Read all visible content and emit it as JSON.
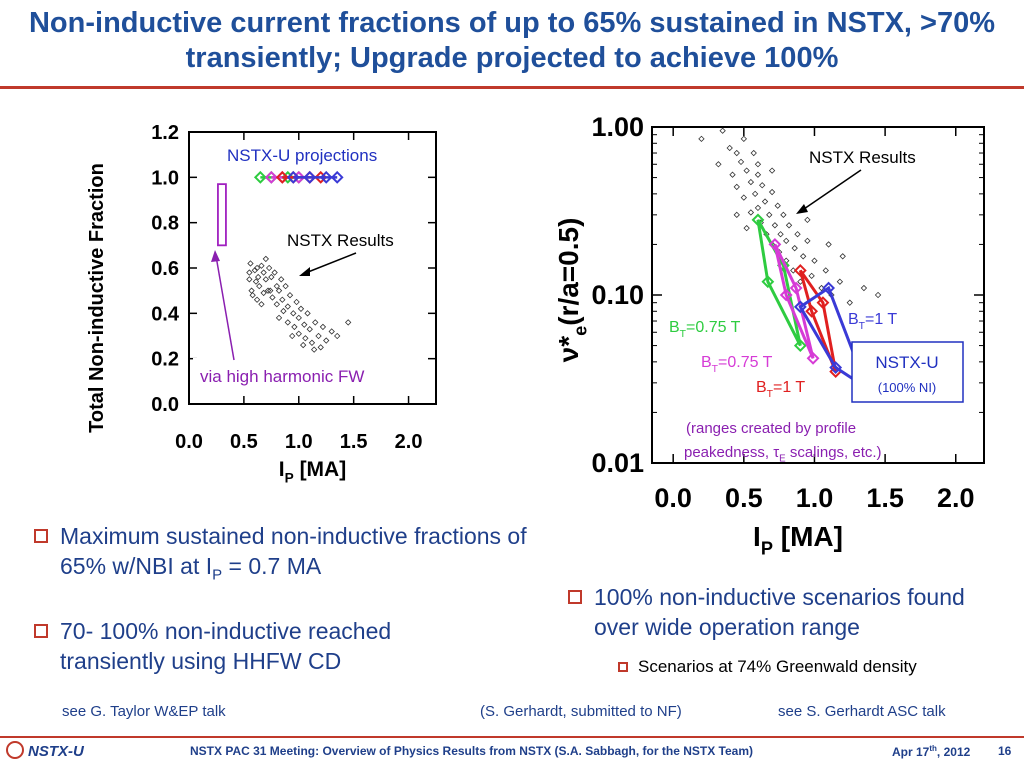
{
  "slide": {
    "title": "Non-inductive current fractions of up to 65% sustained in NSTX, >70% transiently; Upgrade projected to achieve 100%",
    "bullets_left": [
      {
        "text": "Maximum sustained non-inductive fractions of 65% w/NBI at I",
        "sub": "P",
        "tail": " = 0.7 MA"
      },
      {
        "text": "70- 100% non-inductive reached transiently using HHFW CD"
      }
    ],
    "bullets_right": [
      {
        "text": "100% non-inductive scenarios found over wide operation range"
      },
      {
        "text": "Scenarios at 74% Greenwald density"
      }
    ],
    "refs": [
      "see G. Taylor W&EP talk",
      "(S. Gerhardt, submitted to NF)",
      "see S. Gerhardt ASC talk"
    ],
    "footer": {
      "logo": "NSTX-U",
      "meeting": "NSTX PAC 31 Meeting: Overview of Physics Results from NSTX (S.A. Sabbagh, for the NSTX Team)",
      "date_prefix": "Apr 17",
      "date_sup": "th",
      "date_suffix": ", 2012",
      "page": "16"
    },
    "colors": {
      "title": "#1f4f9a",
      "accent": "#c0392b"
    }
  },
  "chart_data": [
    {
      "type": "scatter",
      "title": "",
      "xlabel_main": "I",
      "xlabel_sub": "P",
      "xlabel_tail": " [MA]",
      "ylabel": "Total Non-inductive Fraction",
      "xlim": [
        0,
        2.25
      ],
      "ylim": [
        0,
        1.2
      ],
      "xticks": [
        "0.0",
        "0.5",
        "1.0",
        "1.5",
        "2.0"
      ],
      "yticks": [
        "0.0",
        "0.2",
        "0.4",
        "0.6",
        "0.8",
        "1.0",
        "1.2"
      ],
      "annotations": [
        "NSTX-U projections",
        "NSTX Results",
        "via high harmonic FW"
      ],
      "hhfw_range": {
        "x": 0.3,
        "y": [
          0.7,
          0.97
        ]
      },
      "nstx_results": [
        [
          0.55,
          0.58
        ],
        [
          0.55,
          0.55
        ],
        [
          0.56,
          0.62
        ],
        [
          0.57,
          0.5
        ],
        [
          0.6,
          0.59
        ],
        [
          0.61,
          0.54
        ],
        [
          0.62,
          0.6
        ],
        [
          0.63,
          0.56
        ],
        [
          0.64,
          0.52
        ],
        [
          0.66,
          0.61
        ],
        [
          0.68,
          0.58
        ],
        [
          0.7,
          0.64
        ],
        [
          0.7,
          0.55
        ],
        [
          0.72,
          0.5
        ],
        [
          0.73,
          0.6
        ],
        [
          0.75,
          0.56
        ],
        [
          0.76,
          0.47
        ],
        [
          0.78,
          0.58
        ],
        [
          0.8,
          0.52
        ],
        [
          0.8,
          0.44
        ],
        [
          0.82,
          0.5
        ],
        [
          0.84,
          0.55
        ],
        [
          0.85,
          0.46
        ],
        [
          0.86,
          0.41
        ],
        [
          0.88,
          0.52
        ],
        [
          0.9,
          0.43
        ],
        [
          0.9,
          0.36
        ],
        [
          0.92,
          0.48
        ],
        [
          0.95,
          0.4
        ],
        [
          0.96,
          0.34
        ],
        [
          0.98,
          0.45
        ],
        [
          1.0,
          0.38
        ],
        [
          1.0,
          0.31
        ],
        [
          1.02,
          0.42
        ],
        [
          1.05,
          0.35
        ],
        [
          1.06,
          0.29
        ],
        [
          1.08,
          0.4
        ],
        [
          1.1,
          0.33
        ],
        [
          1.12,
          0.27
        ],
        [
          1.15,
          0.36
        ],
        [
          1.18,
          0.3
        ],
        [
          1.2,
          0.25
        ],
        [
          1.22,
          0.34
        ],
        [
          1.25,
          0.28
        ],
        [
          1.3,
          0.32
        ],
        [
          1.35,
          0.3
        ],
        [
          0.58,
          0.48
        ],
        [
          0.62,
          0.46
        ],
        [
          0.68,
          0.49
        ],
        [
          0.74,
          0.5
        ],
        [
          0.66,
          0.44
        ],
        [
          0.82,
          0.38
        ],
        [
          0.94,
          0.3
        ],
        [
          1.04,
          0.26
        ],
        [
          1.14,
          0.24
        ],
        [
          1.45,
          0.36
        ]
      ],
      "projections": [
        {
          "color": "#2ecc40",
          "x": [
            0.65,
            0.75,
            0.9,
            1.0
          ]
        },
        {
          "color": "#d63bd6",
          "x": [
            0.75,
            0.85,
            1.0,
            1.1
          ]
        },
        {
          "color": "#e02020",
          "x": [
            0.85,
            0.95,
            1.1,
            1.2
          ]
        },
        {
          "color": "#3a3ad6",
          "x": [
            0.95,
            1.1,
            1.25,
            1.35
          ]
        }
      ]
    },
    {
      "type": "scatter",
      "title": "",
      "xlabel_main": "I",
      "xlabel_sub": "P",
      "xlabel_tail": " [MA]",
      "ylabel_main": "ν*",
      "ylabel_sub": "e",
      "ylabel_tail": "(r/a=0.5)",
      "yscale": "log",
      "xlim": [
        -0.15,
        2.2
      ],
      "ylim": [
        0.01,
        1.0
      ],
      "xticks": [
        "0.0",
        "0.5",
        "1.0",
        "1.5",
        "2.0"
      ],
      "yticks": [
        "0.01",
        "0.10",
        "1.00"
      ],
      "annotations": {
        "nstx": "NSTX Results",
        "nstxu_box_title": "NSTX-U",
        "nstxu_box_note": "(100% NI)",
        "ranges_note_line1": "(ranges created by profile",
        "ranges_note_line2_a": "peakedness, τ",
        "ranges_note_line2_sub": "E",
        "ranges_note_line2_b": " scalings, etc.)"
      },
      "series": [
        {
          "label_main": "B",
          "label_sub": "T",
          "label_tail": "=0.75 T",
          "color": "#2ecc40",
          "polygon": [
            [
              0.6,
              0.28
            ],
            [
              0.67,
              0.12
            ],
            [
              0.9,
              0.05
            ],
            [
              0.78,
              0.15
            ]
          ]
        },
        {
          "label_main": "B",
          "label_sub": "T",
          "label_tail": "=0.75 T",
          "color": "#d63bd6",
          "polygon": [
            [
              0.72,
              0.2
            ],
            [
              0.8,
              0.1
            ],
            [
              0.99,
              0.042
            ],
            [
              0.87,
              0.11
            ]
          ]
        },
        {
          "label_main": "B",
          "label_sub": "T",
          "label_tail": "=1 T",
          "color": "#e02020",
          "polygon": [
            [
              0.9,
              0.14
            ],
            [
              0.98,
              0.08
            ],
            [
              1.15,
              0.035
            ],
            [
              1.06,
              0.09
            ]
          ]
        },
        {
          "label_main": "B",
          "label_sub": "T",
          "label_tail": "=1 T",
          "color": "#3a3ad6",
          "polygon": [
            [
              0.9,
              0.085
            ],
            [
              1.1,
              0.11
            ],
            [
              1.37,
              0.028
            ],
            [
              1.15,
              0.037
            ]
          ]
        }
      ],
      "nstx_results": [
        [
          0.2,
          0.85
        ],
        [
          0.32,
          0.6
        ],
        [
          0.35,
          0.95
        ],
        [
          0.4,
          0.75
        ],
        [
          0.42,
          0.52
        ],
        [
          0.45,
          0.7
        ],
        [
          0.45,
          0.44
        ],
        [
          0.48,
          0.62
        ],
        [
          0.5,
          0.85
        ],
        [
          0.5,
          0.38
        ],
        [
          0.52,
          0.55
        ],
        [
          0.55,
          0.47
        ],
        [
          0.55,
          0.31
        ],
        [
          0.57,
          0.7
        ],
        [
          0.58,
          0.4
        ],
        [
          0.6,
          0.33
        ],
        [
          0.6,
          0.52
        ],
        [
          0.62,
          0.27
        ],
        [
          0.63,
          0.45
        ],
        [
          0.65,
          0.36
        ],
        [
          0.66,
          0.23
        ],
        [
          0.68,
          0.3
        ],
        [
          0.7,
          0.41
        ],
        [
          0.7,
          0.2
        ],
        [
          0.72,
          0.26
        ],
        [
          0.74,
          0.34
        ],
        [
          0.75,
          0.18
        ],
        [
          0.76,
          0.23
        ],
        [
          0.78,
          0.3
        ],
        [
          0.8,
          0.16
        ],
        [
          0.8,
          0.21
        ],
        [
          0.82,
          0.26
        ],
        [
          0.85,
          0.14
        ],
        [
          0.86,
          0.19
        ],
        [
          0.88,
          0.23
        ],
        [
          0.9,
          0.12
        ],
        [
          0.92,
          0.17
        ],
        [
          0.95,
          0.21
        ],
        [
          0.98,
          0.13
        ],
        [
          1.0,
          0.16
        ],
        [
          1.05,
          0.11
        ],
        [
          1.08,
          0.14
        ],
        [
          1.12,
          0.1
        ],
        [
          1.18,
          0.12
        ],
        [
          1.25,
          0.09
        ],
        [
          1.35,
          0.11
        ],
        [
          1.45,
          0.1
        ],
        [
          1.1,
          0.2
        ],
        [
          0.6,
          0.6
        ],
        [
          0.7,
          0.55
        ],
        [
          0.45,
          0.3
        ],
        [
          0.52,
          0.25
        ],
        [
          0.95,
          0.28
        ],
        [
          1.2,
          0.17
        ]
      ]
    }
  ]
}
